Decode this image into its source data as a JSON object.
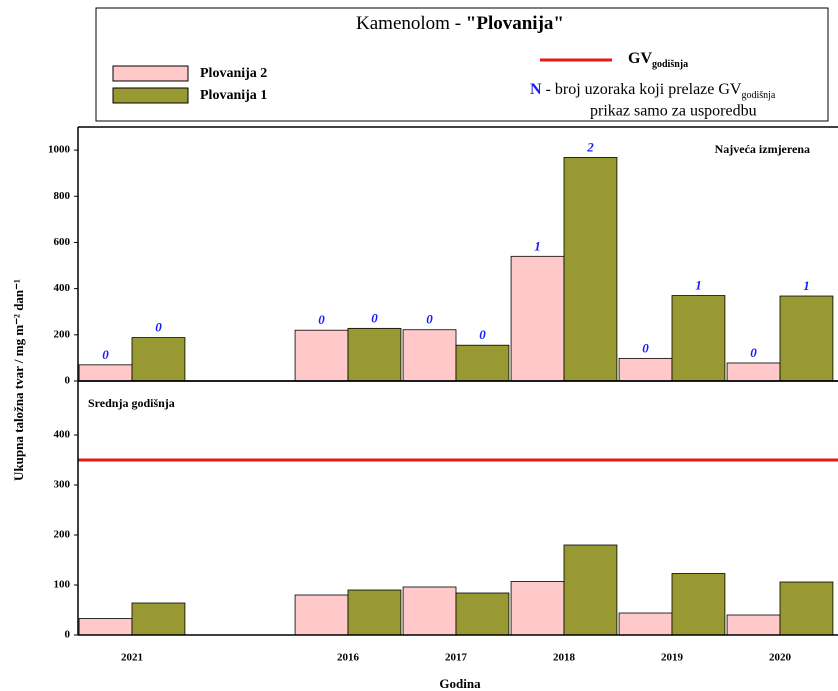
{
  "chart_data": {
    "type": "bar",
    "title_prefix": "Kamenolom - ",
    "title_name": "\"Plovanija\"",
    "gv_label": "GV",
    "gv_subscript": "godišnja",
    "gv_color": "#e31a1c",
    "note_symbol": "N",
    "note_text": " - broj uzoraka koji prelaze GV",
    "note_subscript": "godišnja",
    "note_line2": "prikaz samo za usporedbu",
    "y_label": "Ukupna taložna tvar / mg m⁻² dan⁻¹",
    "x_label": "Godina",
    "categories": [
      "2021",
      null,
      "2016",
      "2017",
      "2018",
      "2019",
      "2020"
    ],
    "series": [
      {
        "name": "Plovanija 2",
        "color": "#ffc9c9"
      },
      {
        "name": "Plovanija 1",
        "color": "#999933"
      }
    ],
    "panels": [
      {
        "label": "Najveća izmjerena",
        "ylim": [
          0,
          1100
        ],
        "yticks": [
          0,
          200,
          400,
          600,
          800,
          1000
        ],
        "values": [
          [
            70,
            null,
            220,
            222,
            540,
            98,
            78
          ],
          [
            188,
            null,
            228,
            155,
            968,
            370,
            368
          ]
        ],
        "n_exceed": [
          [
            0,
            null,
            0,
            0,
            1,
            0,
            0
          ],
          [
            0,
            null,
            0,
            0,
            2,
            1,
            1
          ]
        ]
      },
      {
        "label": "Srednja godišnja",
        "ylim": [
          0,
          508
        ],
        "yticks": [
          0,
          100,
          200,
          300,
          400
        ],
        "values": [
          [
            33,
            null,
            80,
            96,
            107,
            44,
            40
          ],
          [
            64,
            null,
            90,
            84,
            180,
            123,
            106
          ]
        ],
        "gv": 350
      }
    ]
  }
}
